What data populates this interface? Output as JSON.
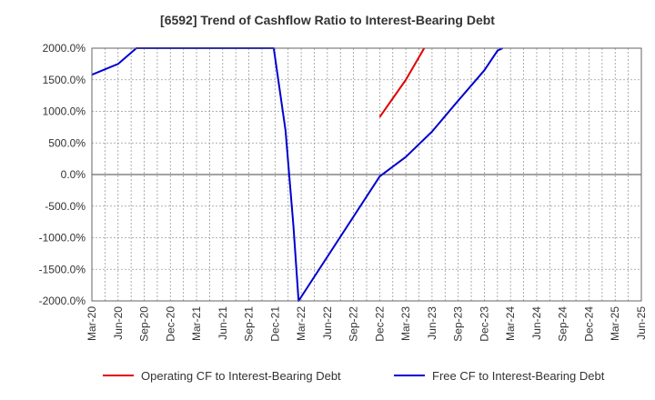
{
  "chart_data": {
    "type": "line",
    "title": "[6592]  Trend of Cashflow Ratio to Interest-Bearing Debt",
    "xlabel": "",
    "ylabel": "",
    "ylim": [
      -2000,
      2000
    ],
    "yticks": [
      "2000.0%",
      "1500.0%",
      "1000.0%",
      "500.0%",
      "0.0%",
      "-500.0%",
      "-1000.0%",
      "-1500.0%",
      "-2000.0%"
    ],
    "ytick_values": [
      2000,
      1500,
      1000,
      500,
      0,
      -500,
      -1000,
      -1500,
      -2000
    ],
    "categories": [
      "Mar-20",
      "Jun-20",
      "Sep-20",
      "Dec-20",
      "Mar-21",
      "Jun-21",
      "Sep-21",
      "Dec-21",
      "Mar-22",
      "Jun-22",
      "Sep-22",
      "Dec-22",
      "Mar-23",
      "Jun-23",
      "Sep-23",
      "Dec-23",
      "Mar-24",
      "Jun-24",
      "Sep-24",
      "Dec-24",
      "Mar-25",
      "Jun-25"
    ],
    "grid": true,
    "legend_position": "bottom",
    "series": [
      {
        "name": "Operating CF to Interest-Bearing Debt",
        "color": "#e00000",
        "points": [
          [
            11,
            910
          ],
          [
            12,
            1500
          ],
          [
            12.7,
            2000
          ]
        ]
      },
      {
        "name": "Free CF to Interest-Bearing Debt",
        "color": "#0000d0",
        "points": [
          [
            0,
            1580
          ],
          [
            1,
            1750
          ],
          [
            1.7,
            2000
          ],
          [
            6.95,
            2000
          ],
          [
            7.4,
            700
          ],
          [
            7.7,
            -800
          ],
          [
            7.9,
            -2000
          ],
          [
            11,
            -30
          ],
          [
            12,
            280
          ],
          [
            13,
            680
          ],
          [
            14,
            1170
          ],
          [
            15,
            1650
          ],
          [
            15.5,
            1960
          ],
          [
            15.7,
            2000
          ]
        ]
      }
    ]
  }
}
